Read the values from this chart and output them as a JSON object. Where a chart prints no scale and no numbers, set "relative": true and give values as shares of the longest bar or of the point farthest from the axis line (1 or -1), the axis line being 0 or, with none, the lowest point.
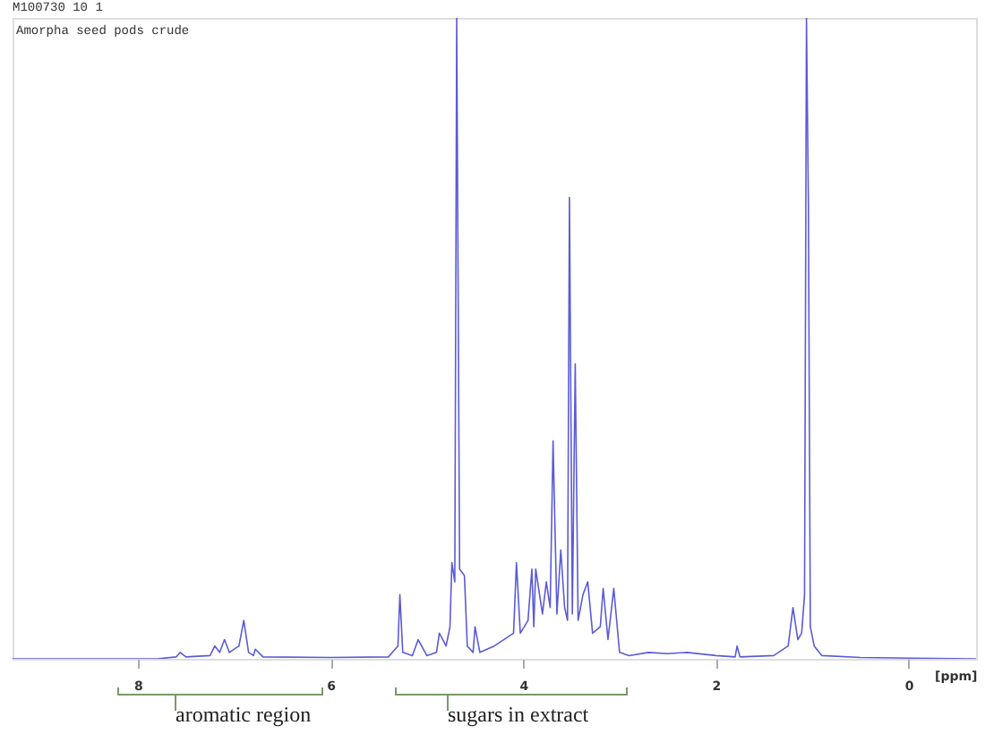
{
  "chart_data": {
    "type": "line",
    "title": "Amorpha seed pods crude",
    "subtitle": "M100730  10  1",
    "xlabel": "[ppm]",
    "annotations": [
      "aromatic region",
      "sugars in extract"
    ],
    "relative": true,
    "xlim": [
      9.3,
      -0.7
    ],
    "xticks": [
      8,
      6,
      4,
      2,
      0
    ],
    "x": [
      9.3,
      8.5,
      7.8,
      7.6,
      7.56,
      7.5,
      7.25,
      7.2,
      7.15,
      7.1,
      7.05,
      6.95,
      6.9,
      6.85,
      6.8,
      6.78,
      6.7,
      6.0,
      5.4,
      5.3,
      5.28,
      5.25,
      5.15,
      5.09,
      5.0,
      4.9,
      4.87,
      4.8,
      4.76,
      4.74,
      4.71,
      4.69,
      4.66,
      4.61,
      4.58,
      4.52,
      4.5,
      4.45,
      4.3,
      4.1,
      4.07,
      4.03,
      3.95,
      3.91,
      3.89,
      3.87,
      3.8,
      3.76,
      3.72,
      3.69,
      3.65,
      3.61,
      3.57,
      3.54,
      3.52,
      3.49,
      3.46,
      3.43,
      3.38,
      3.33,
      3.28,
      3.2,
      3.17,
      3.12,
      3.06,
      3.0,
      2.9,
      2.7,
      2.5,
      2.3,
      2.0,
      1.8,
      1.78,
      1.75,
      1.4,
      1.25,
      1.2,
      1.15,
      1.11,
      1.08,
      1.06,
      1.04,
      1.02,
      0.98,
      0.9,
      0.5,
      -0.7
    ],
    "series": [
      {
        "color": "#5b5bd6",
        "values": [
          0,
          0,
          0,
          0.003,
          0.01,
          0.003,
          0.005,
          0.02,
          0.01,
          0.03,
          0.01,
          0.02,
          0.06,
          0.01,
          0.005,
          0.015,
          0.003,
          0.002,
          0.003,
          0.02,
          0.1,
          0.01,
          0.005,
          0.03,
          0.005,
          0.01,
          0.04,
          0.02,
          0.05,
          0.15,
          0.12,
          1,
          0.14,
          0.13,
          0.02,
          0.01,
          0.05,
          0.01,
          0.02,
          0.04,
          0.15,
          0.04,
          0.06,
          0.14,
          0.05,
          0.14,
          0.07,
          0.12,
          0.08,
          0.34,
          0.07,
          0.17,
          0.08,
          0.06,
          0.72,
          0.07,
          0.46,
          0.06,
          0.1,
          0.12,
          0.04,
          0.05,
          0.11,
          0.03,
          0.11,
          0.01,
          0.005,
          0.01,
          0.008,
          0.01,
          0.005,
          0.003,
          0.02,
          0.003,
          0.005,
          0.02,
          0.08,
          0.03,
          0.04,
          0.1,
          1,
          0.71,
          0.05,
          0.02,
          0.005,
          0.002,
          0
        ]
      }
    ]
  }
}
